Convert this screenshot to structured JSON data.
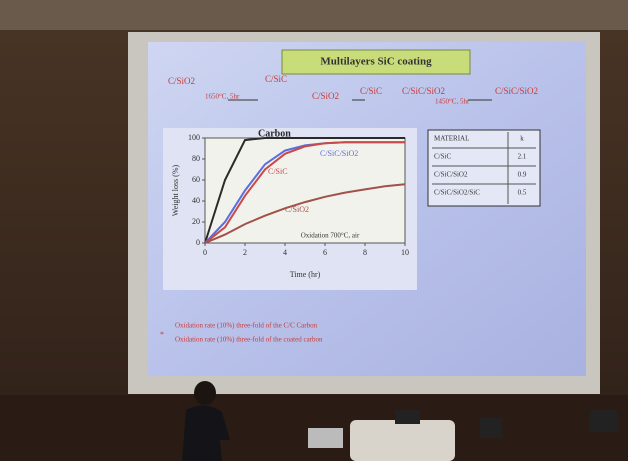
{
  "slide": {
    "title": "Multilayers SiC coating",
    "scheme": [
      "C/SiO2",
      "1650°C, 5hr",
      "C/SiC",
      "C/SiO2",
      "C/SiC",
      "C/SiC/SiO2",
      "1450°C, 5hr",
      "C/SiC/SiO2"
    ],
    "table": {
      "rows": [
        [
          "MATERIAL",
          "k"
        ],
        [
          "C/SiC",
          "2.1"
        ],
        [
          "C/SiC/SiO2",
          "0.9"
        ],
        [
          "C/SiC/SiO2/SiC",
          "0.5"
        ]
      ]
    },
    "notes": [
      "Oxidation rate (10%) three-fold of the C/C Carbon",
      "Oxidation rate (10%) three-fold of the coated carbon"
    ]
  },
  "chart_data": {
    "type": "line",
    "ylabel": "Weight loss (%)",
    "xlabel": "Time (hr)",
    "annotation": "Oxidation 700°C, air",
    "x": [
      0,
      1,
      2,
      3,
      4,
      5,
      6,
      7,
      8,
      9,
      10
    ],
    "series": [
      {
        "name": "Carbon",
        "color": "#2a2a2a",
        "values": [
          0,
          60,
          98,
          100,
          100,
          100,
          100,
          100,
          100,
          100,
          100
        ]
      },
      {
        "name": "C/SiC/SiO2",
        "color": "#5a6ee0",
        "values": [
          0,
          20,
          50,
          75,
          88,
          93,
          95,
          96,
          96,
          96,
          96
        ]
      },
      {
        "name": "C/SiC",
        "color": "#c84a4a",
        "values": [
          0,
          15,
          45,
          70,
          85,
          92,
          95,
          96,
          96,
          96,
          96
        ]
      },
      {
        "name": "C/SiO2",
        "color": "#a0524a",
        "values": [
          0,
          8,
          18,
          26,
          33,
          39,
          44,
          48,
          51,
          54,
          56
        ]
      }
    ],
    "xlim": [
      0,
      10
    ],
    "xticks": [
      0,
      2,
      4,
      6,
      8,
      10
    ],
    "ylim": [
      0,
      100
    ],
    "yticks": [
      0,
      20,
      40,
      60,
      80,
      100
    ]
  }
}
